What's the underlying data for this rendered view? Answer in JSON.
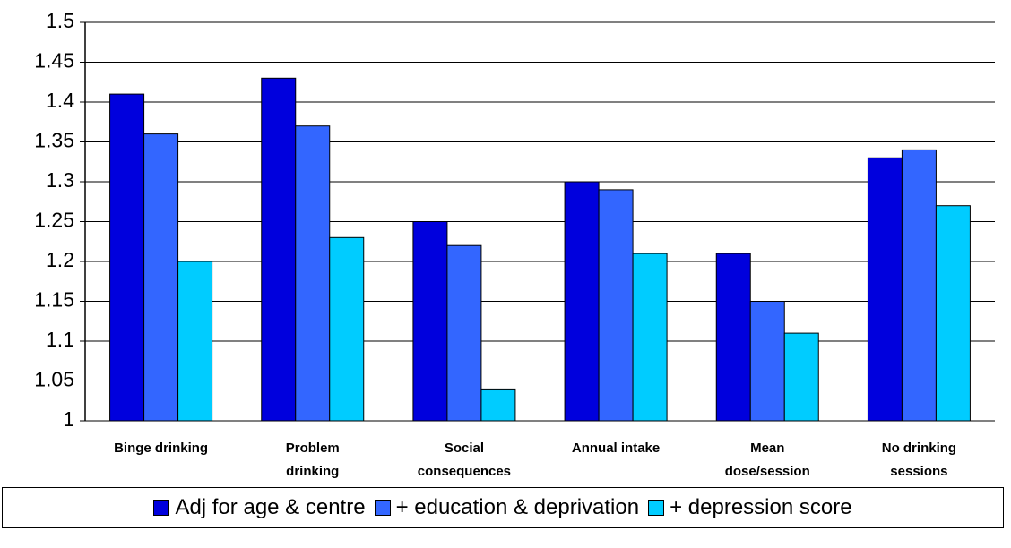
{
  "chart_data": {
    "type": "bar",
    "categories": [
      "Binge drinking",
      "Problem\ndrinking",
      "Social\nconsequences",
      "Annual intake",
      "Mean\ndose/session",
      "No drinking\nsessions"
    ],
    "series": [
      {
        "name": "Adj for age & centre",
        "color": "#0000dd",
        "values": [
          1.41,
          1.43,
          1.25,
          1.3,
          1.21,
          1.33
        ]
      },
      {
        "name": "+ education & deprivation",
        "color": "#3366ff",
        "values": [
          1.36,
          1.37,
          1.22,
          1.29,
          1.15,
          1.34
        ]
      },
      {
        "name": "+ depression score",
        "color": "#00ccff",
        "values": [
          1.2,
          1.23,
          1.04,
          1.21,
          1.11,
          1.27
        ]
      }
    ],
    "ylim": [
      1,
      1.5
    ],
    "yticks": [
      1,
      1.05,
      1.1,
      1.15,
      1.2,
      1.25,
      1.3,
      1.35,
      1.4,
      1.45,
      1.5
    ],
    "grid": true,
    "legend": "bottom"
  }
}
